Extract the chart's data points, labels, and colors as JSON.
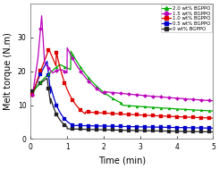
{
  "title": "",
  "xlabel": "Time (min)",
  "ylabel": "Melt torque (N.m)",
  "xlim": [
    0,
    5
  ],
  "ylim": [
    0,
    40
  ],
  "series": [
    {
      "label": "2.0 wt% BGPPO",
      "color": "#00aa00",
      "marker": "^",
      "shape": "2wt"
    },
    {
      "label": "1.5 wt% BGPPO",
      "color": "#bb00bb",
      "marker": "D",
      "shape": "1p5wt"
    },
    {
      "label": "1.0 wt% BGPPO",
      "color": "#dd0000",
      "marker": "s",
      "shape": "1wt"
    },
    {
      "label": "0.5 wt% BGPPO",
      "color": "#0000cc",
      "marker": "s",
      "shape": "0p5wt"
    },
    {
      "label": "0 wt% BGPPO",
      "color": "#222222",
      "marker": "s",
      "shape": "0wt"
    }
  ],
  "xticks": [
    0,
    1,
    2,
    3,
    4,
    5
  ],
  "yticks": [
    0,
    10,
    20,
    30
  ],
  "legend_loc": "upper right",
  "fontsize": 7,
  "background_color": "#ffffff"
}
